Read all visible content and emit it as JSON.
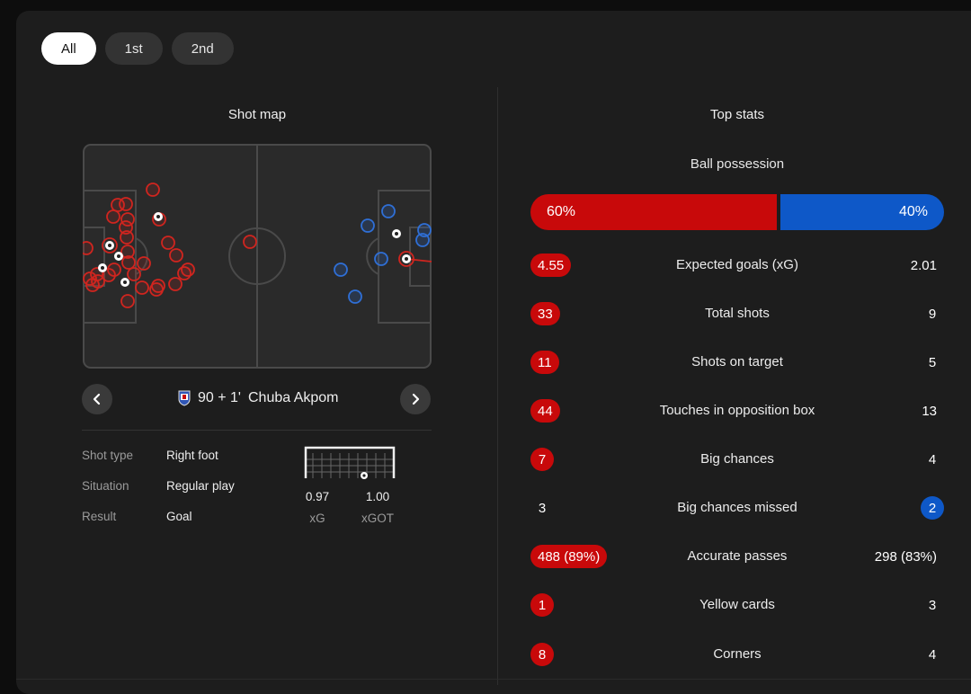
{
  "tabs": [
    {
      "label": "All",
      "active": true
    },
    {
      "label": "1st",
      "active": false
    },
    {
      "label": "2nd",
      "active": false
    }
  ],
  "shot_map": {
    "title": "Shot map",
    "selected_shot": {
      "minute": "90 + 1'",
      "player": "Chuba Akpom",
      "details": [
        {
          "key": "Shot type",
          "value": "Right foot"
        },
        {
          "key": "Situation",
          "value": "Regular play"
        },
        {
          "key": "Result",
          "value": "Goal"
        }
      ],
      "xg": {
        "value": "0.97",
        "label": "xG"
      },
      "xgot": {
        "value": "1.00",
        "label": "xGOT"
      }
    },
    "colors": {
      "home": "#d0251f",
      "away": "#2f6fd6"
    }
  },
  "top_stats": {
    "title": "Top stats",
    "possession": {
      "label": "Ball possession",
      "home": "60%",
      "away": "40%",
      "home_fraction": 0.6
    },
    "rows": [
      {
        "label": "Expected goals (xG)",
        "home": "4.55",
        "away": "2.01",
        "highlight": "home"
      },
      {
        "label": "Total shots",
        "home": "33",
        "away": "9",
        "highlight": "home"
      },
      {
        "label": "Shots on target",
        "home": "11",
        "away": "5",
        "highlight": "home"
      },
      {
        "label": "Touches in opposition box",
        "home": "44",
        "away": "13",
        "highlight": "home"
      },
      {
        "label": "Big chances",
        "home": "7",
        "away": "4",
        "highlight": "home"
      },
      {
        "label": "Big chances missed",
        "home": "3",
        "away": "2",
        "highlight": "away"
      },
      {
        "label": "Accurate passes",
        "home": "488 (89%)",
        "away": "298 (83%)",
        "highlight": "home"
      },
      {
        "label": "Yellow cards",
        "home": "1",
        "away": "3",
        "highlight": "home"
      },
      {
        "label": "Corners",
        "home": "8",
        "away": "4",
        "highlight": "home"
      }
    ]
  }
}
